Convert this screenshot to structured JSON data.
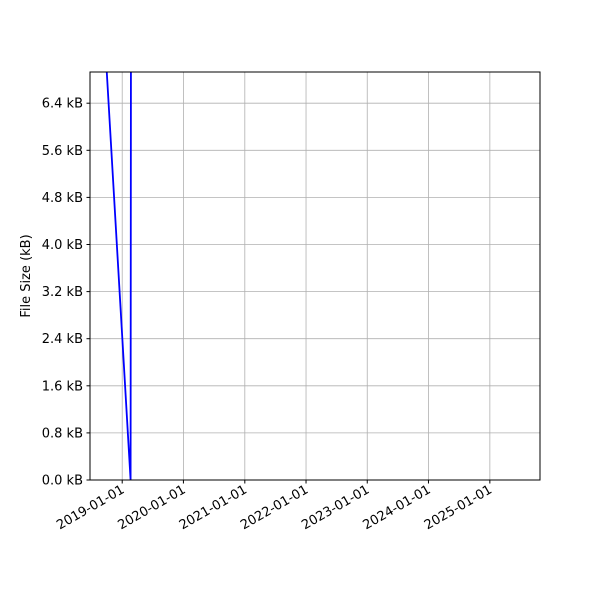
{
  "chart_data": {
    "type": "line",
    "title": "",
    "xlabel": "",
    "ylabel": "File Size (kB)",
    "x_axis_type": "date",
    "xlim": [
      "2018-06-23",
      "2025-10-27"
    ],
    "ylim": [
      0,
      6.93
    ],
    "grid": true,
    "x_ticks": [
      "2019-01-01",
      "2020-01-01",
      "2021-01-01",
      "2022-01-01",
      "2023-01-01",
      "2024-01-01",
      "2025-01-01"
    ],
    "y_ticks": [
      0,
      0.8,
      1.6,
      2.4,
      3.2,
      4.0,
      4.8,
      5.6,
      6.4
    ],
    "y_tick_labels": [
      "0.0 kB",
      "0.8 kB",
      "1.6 kB",
      "2.4 kB",
      "3.2 kB",
      "4.0 kB",
      "4.8 kB",
      "5.6 kB",
      "6.4 kB"
    ],
    "series": [
      {
        "color": "#0000ff",
        "points": [
          {
            "x": "2018-10-01",
            "y": 6.93
          },
          {
            "x": "2019-02-20",
            "y": 0
          },
          {
            "x": "2019-02-22",
            "y": 6.93
          }
        ]
      }
    ]
  }
}
